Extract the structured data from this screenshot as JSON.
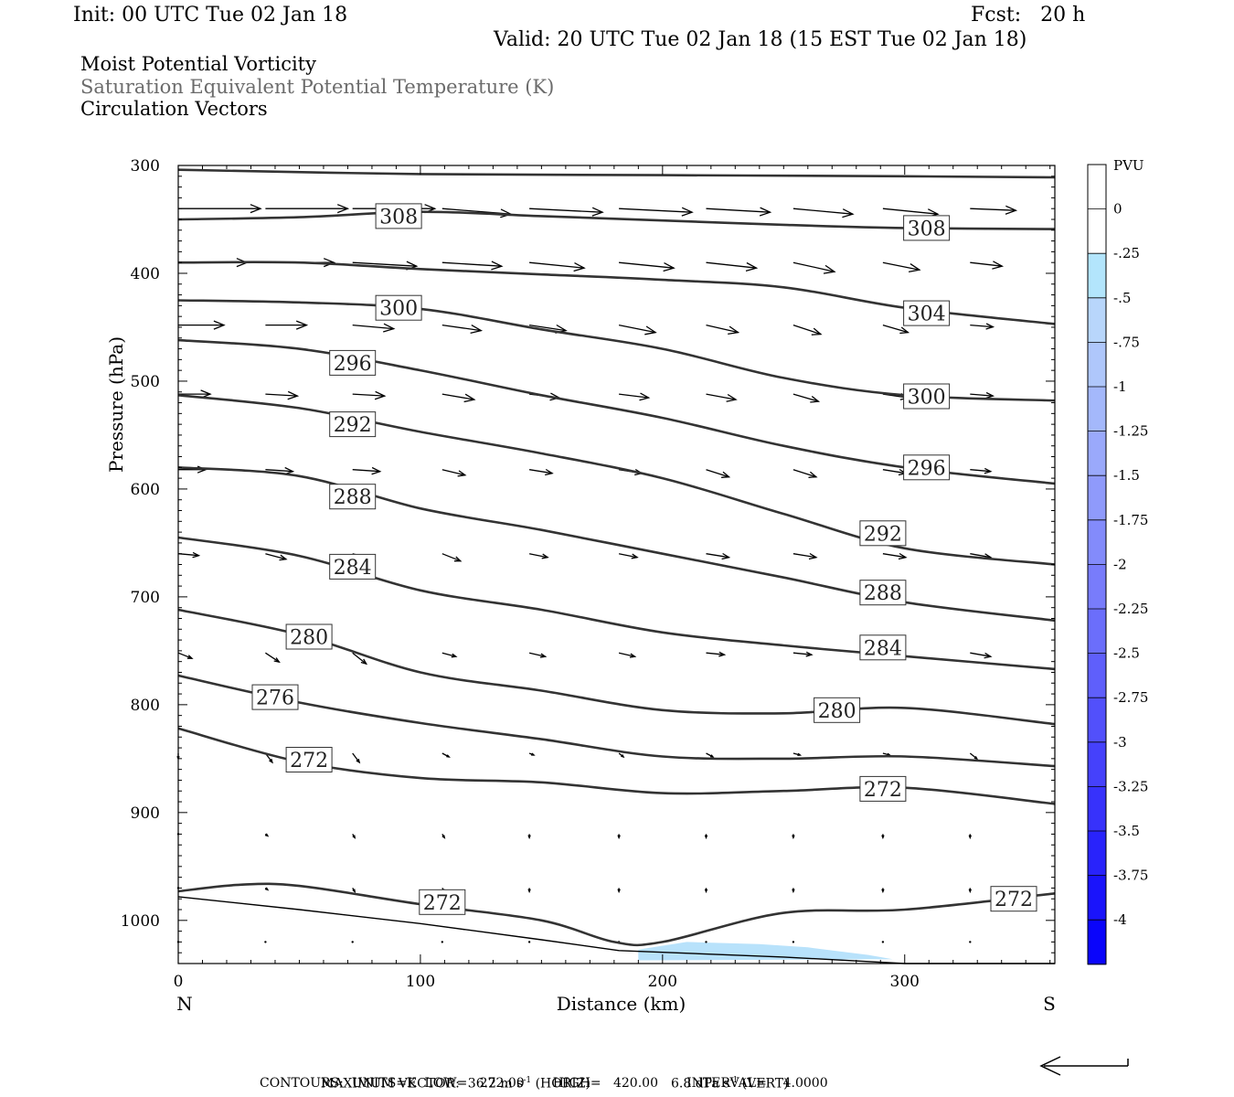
{
  "header": {
    "init": "Init: 00 UTC Tue 02 Jan 18",
    "fcst": "Fcst:   20 h",
    "valid": "Valid: 20 UTC Tue 02 Jan 18 (15 EST Tue 02 Jan 18)"
  },
  "titles": [
    "Moist Potential Vorticity",
    "Saturation Equivalent Potential Temperature (K)",
    "Circulation Vectors"
  ],
  "colors": {
    "contour": "#333333",
    "mpv_fill": "#b8e2fb"
  },
  "chart_data": {
    "type": "cross-section",
    "xlabel": "Distance (km)",
    "ylabel": "Pressure (hPa)",
    "xlim": [
      0,
      362
    ],
    "ylim": [
      1040,
      300
    ],
    "x_ticks": [
      "0",
      "100",
      "200",
      "300"
    ],
    "y_ticks": [
      "300",
      "400",
      "500",
      "600",
      "700",
      "800",
      "900",
      "1000"
    ],
    "left_end_label": "N",
    "right_end_label": "S",
    "contour_field": "Saturation Equivalent Potential Temperature (K)",
    "contours": [
      {
        "theta": "308",
        "points": [
          [
            0,
            304
          ],
          [
            100,
            308
          ],
          [
            200,
            309
          ],
          [
            300,
            310
          ],
          [
            362,
            311
          ]
        ]
      },
      {
        "theta": "308",
        "points": [
          [
            0,
            350
          ],
          [
            50,
            348
          ],
          [
            100,
            343
          ],
          [
            150,
            347
          ],
          [
            200,
            351
          ],
          [
            250,
            355
          ],
          [
            300,
            358
          ],
          [
            362,
            359
          ]
        ]
      },
      {
        "theta": "304",
        "points": [
          [
            0,
            390
          ],
          [
            50,
            390
          ],
          [
            100,
            396
          ],
          [
            150,
            401
          ],
          [
            200,
            406
          ],
          [
            250,
            413
          ],
          [
            300,
            432
          ],
          [
            362,
            447
          ]
        ]
      },
      {
        "theta": "300",
        "points": [
          [
            0,
            425
          ],
          [
            50,
            427
          ],
          [
            100,
            433
          ],
          [
            150,
            452
          ],
          [
            200,
            470
          ],
          [
            250,
            497
          ],
          [
            300,
            513
          ],
          [
            362,
            518
          ]
        ]
      },
      {
        "theta": "296",
        "points": [
          [
            0,
            462
          ],
          [
            50,
            470
          ],
          [
            100,
            490
          ],
          [
            150,
            513
          ],
          [
            200,
            534
          ],
          [
            250,
            560
          ],
          [
            300,
            580
          ],
          [
            362,
            595
          ]
        ]
      },
      {
        "theta": "292",
        "points": [
          [
            0,
            513
          ],
          [
            50,
            525
          ],
          [
            100,
            547
          ],
          [
            150,
            567
          ],
          [
            200,
            590
          ],
          [
            250,
            623
          ],
          [
            300,
            655
          ],
          [
            362,
            670
          ]
        ]
      },
      {
        "theta": "288",
        "points": [
          [
            0,
            580
          ],
          [
            50,
            588
          ],
          [
            100,
            618
          ],
          [
            150,
            638
          ],
          [
            200,
            660
          ],
          [
            250,
            682
          ],
          [
            300,
            705
          ],
          [
            362,
            722
          ]
        ]
      },
      {
        "theta": "284",
        "points": [
          [
            0,
            645
          ],
          [
            50,
            662
          ],
          [
            100,
            694
          ],
          [
            150,
            712
          ],
          [
            200,
            733
          ],
          [
            250,
            745
          ],
          [
            300,
            755
          ],
          [
            362,
            767
          ]
        ]
      },
      {
        "theta": "280",
        "points": [
          [
            0,
            712
          ],
          [
            50,
            735
          ],
          [
            100,
            770
          ],
          [
            150,
            787
          ],
          [
            200,
            805
          ],
          [
            250,
            808
          ],
          [
            300,
            803
          ],
          [
            362,
            818
          ]
        ]
      },
      {
        "theta": "276",
        "points": [
          [
            0,
            773
          ],
          [
            50,
            798
          ],
          [
            100,
            817
          ],
          [
            150,
            832
          ],
          [
            200,
            848
          ],
          [
            250,
            850
          ],
          [
            300,
            848
          ],
          [
            362,
            857
          ]
        ]
      },
      {
        "theta": "272",
        "points": [
          [
            0,
            822
          ],
          [
            50,
            853
          ],
          [
            100,
            868
          ],
          [
            150,
            872
          ],
          [
            200,
            882
          ],
          [
            250,
            880
          ],
          [
            300,
            877
          ],
          [
            362,
            892
          ]
        ]
      },
      {
        "theta": "272",
        "points": [
          [
            0,
            973
          ],
          [
            25,
            967
          ],
          [
            50,
            968
          ],
          [
            100,
            985
          ],
          [
            150,
            1000
          ],
          [
            180,
            1020
          ],
          [
            200,
            1020
          ],
          [
            250,
            993
          ],
          [
            300,
            990
          ],
          [
            362,
            975
          ]
        ]
      }
    ],
    "contour_labels": [
      {
        "text": "308",
        "x": 91,
        "p": 347
      },
      {
        "text": "308",
        "x": 309,
        "p": 358
      },
      {
        "text": "300",
        "x": 91,
        "p": 432
      },
      {
        "text": "304",
        "x": 309,
        "p": 437
      },
      {
        "text": "296",
        "x": 72,
        "p": 483
      },
      {
        "text": "300",
        "x": 309,
        "p": 514
      },
      {
        "text": "292",
        "x": 72,
        "p": 540
      },
      {
        "text": "296",
        "x": 309,
        "p": 580
      },
      {
        "text": "288",
        "x": 72,
        "p": 607
      },
      {
        "text": "292",
        "x": 291,
        "p": 641
      },
      {
        "text": "284",
        "x": 72,
        "p": 672
      },
      {
        "text": "288",
        "x": 291,
        "p": 696
      },
      {
        "text": "280",
        "x": 54,
        "p": 737
      },
      {
        "text": "284",
        "x": 291,
        "p": 747
      },
      {
        "text": "276",
        "x": 40,
        "p": 793
      },
      {
        "text": "280",
        "x": 272,
        "p": 805
      },
      {
        "text": "272",
        "x": 54,
        "p": 851
      },
      {
        "text": "272",
        "x": 291,
        "p": 878
      },
      {
        "text": "272",
        "x": 109,
        "p": 983
      },
      {
        "text": "272",
        "x": 345,
        "p": 980
      }
    ],
    "ground_surface": [
      [
        0,
        978
      ],
      [
        50,
        990
      ],
      [
        100,
        1003
      ],
      [
        150,
        1018
      ],
      [
        182,
        1028
      ],
      [
        250,
        1034
      ],
      [
        300,
        1040
      ],
      [
        362,
        1040
      ]
    ],
    "mpv_shading": {
      "level": "-0.25 to -0.5 PVU",
      "polygon": [
        [
          190,
          1027
        ],
        [
          210,
          1020
        ],
        [
          240,
          1022
        ],
        [
          260,
          1025
        ],
        [
          285,
          1032
        ],
        [
          295,
          1036
        ],
        [
          190,
          1037
        ]
      ]
    },
    "vectors": {
      "columns_x": [
        0,
        36,
        72,
        109,
        145,
        182,
        218,
        254,
        291,
        327
      ],
      "rows": [
        {
          "p": 340,
          "u": [
            36,
            36,
            36,
            30,
            32,
            32,
            28,
            26,
            24,
            20
          ],
          "w": [
            0,
            0,
            0,
            3,
            2,
            2,
            2,
            3,
            3,
            1
          ]
        },
        {
          "p": 390,
          "u": [
            30,
            30,
            28,
            26,
            24,
            24,
            22,
            18,
            16,
            14
          ],
          "w": [
            0,
            0,
            2,
            2,
            3,
            3,
            3,
            5,
            4,
            2
          ]
        },
        {
          "p": 448,
          "u": [
            20,
            18,
            18,
            17,
            16,
            16,
            14,
            12,
            11,
            10
          ],
          "w": [
            0,
            0,
            2,
            3,
            3,
            4,
            4,
            5,
            4,
            1
          ]
        },
        {
          "p": 512,
          "u": [
            14,
            14,
            14,
            14,
            13,
            13,
            13,
            11,
            11,
            10
          ],
          "w": [
            0,
            1,
            1,
            3,
            2,
            2,
            3,
            4,
            2,
            1
          ]
        },
        {
          "p": 582,
          "u": [
            12,
            12,
            12,
            10,
            10,
            10,
            10,
            10,
            10,
            9
          ],
          "w": [
            0,
            1,
            1,
            3,
            2,
            2,
            4,
            4,
            2,
            1
          ]
        },
        {
          "p": 660,
          "u": [
            9,
            9,
            9,
            8,
            8,
            8,
            10,
            10,
            10,
            9
          ],
          "w": [
            1,
            3,
            3,
            4,
            2,
            2,
            2,
            2,
            2,
            2
          ]
        },
        {
          "p": 752,
          "u": [
            6,
            6,
            6,
            6,
            7,
            7,
            8,
            8,
            9,
            9
          ],
          "w": [
            3,
            5,
            6,
            2,
            2,
            2,
            1,
            1,
            1,
            2
          ]
        },
        {
          "p": 845,
          "u": [
            0,
            3,
            3,
            3,
            2,
            2,
            3,
            3,
            3,
            3
          ],
          "w": [
            3,
            5,
            5,
            2,
            1,
            2,
            2,
            1,
            1,
            3
          ]
        },
        {
          "p": 920,
          "u": [
            0,
            1,
            1,
            1,
            0,
            0,
            0,
            0,
            0,
            0
          ],
          "w": [
            0,
            1,
            2,
            2,
            2,
            2,
            2,
            2,
            2,
            2
          ]
        },
        {
          "p": 970,
          "u": [
            0,
            1,
            1,
            1,
            0,
            0,
            0,
            0,
            0,
            0
          ],
          "w": [
            0,
            1,
            2,
            2,
            2,
            2,
            2,
            2,
            2,
            2
          ]
        },
        {
          "p": 1020,
          "u": [
            0,
            0,
            0,
            0,
            0,
            0,
            0,
            0,
            0,
            0
          ],
          "w": [
            0,
            0,
            0,
            0,
            0,
            0,
            0,
            0,
            0,
            0
          ]
        }
      ]
    },
    "colorbar": {
      "title": "PVU",
      "labels": [
        "0",
        "-.25",
        "-.5",
        "-.75",
        "-1",
        "-1.25",
        "-1.5",
        "-1.75",
        "-2",
        "-2.25",
        "-2.5",
        "-2.75",
        "-3",
        "-3.25",
        "-3.5",
        "-3.75",
        "-4"
      ],
      "colors": [
        "#ffffff",
        "#ffffff",
        "#b3e5fc",
        "#b8d6fb",
        "#afc7fb",
        "#a4b8fb",
        "#9aa9fb",
        "#8f9afb",
        "#838bfb",
        "#787cfb",
        "#6b6efb",
        "#5f5ffb",
        "#5250fb",
        "#4541fb",
        "#3732fb",
        "#2923fb",
        "#1a14fb",
        "#0a05fb"
      ]
    }
  },
  "footer": {
    "max_vector_label": "MAXIMUM VECTOR:",
    "horiz_value": "36.2 m s",
    "horiz_unit": "-1",
    "horiz_tag": " (HORIZ)",
    "vert_value": "6.8 dPa s",
    "vert_unit": "-1",
    "vert_tag": " (VERT)",
    "contours_line": "CONTOURS:  UNITS=K  LOW=   272.00       HIGH=   420.00       INTERVAL=    4.0000"
  }
}
